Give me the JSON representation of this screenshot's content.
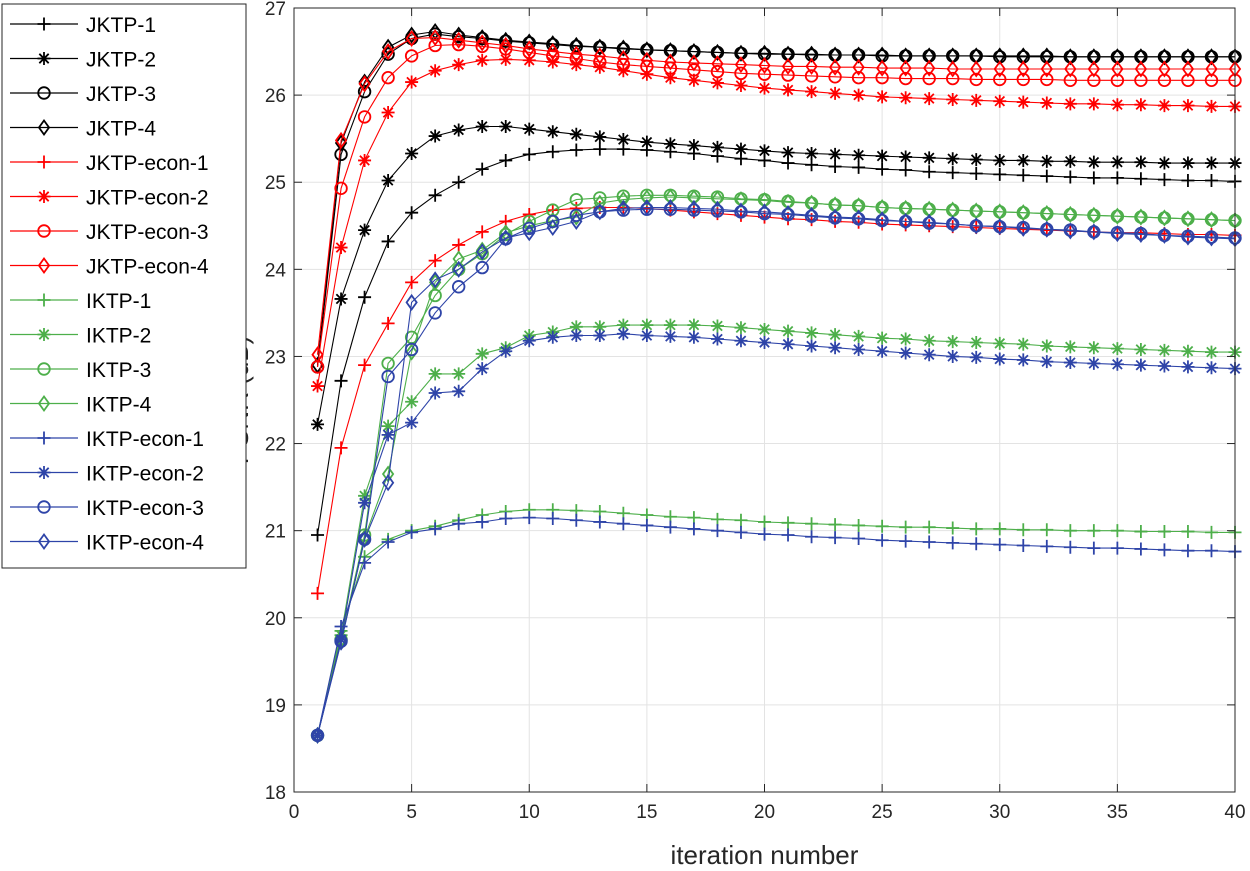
{
  "chart_data": {
    "type": "line",
    "xlabel": "iteration number",
    "ylabel": "PSNR (dB)",
    "xlim": [
      0,
      40
    ],
    "ylim": [
      18,
      27
    ],
    "xticks": [
      0,
      5,
      10,
      15,
      20,
      25,
      30,
      35,
      40
    ],
    "yticks": [
      18,
      19,
      20,
      21,
      22,
      23,
      24,
      25,
      26,
      27
    ],
    "grid": true,
    "legend_position": "outside-left",
    "x": [
      1,
      2,
      3,
      4,
      5,
      6,
      7,
      8,
      9,
      10,
      11,
      12,
      13,
      14,
      15,
      16,
      17,
      18,
      19,
      20,
      21,
      22,
      23,
      24,
      25,
      26,
      27,
      28,
      29,
      30,
      31,
      32,
      33,
      34,
      35,
      36,
      37,
      38,
      39,
      40
    ],
    "series": [
      {
        "name": "JKTP-1",
        "color": "#000000",
        "marker": "plus",
        "values": [
          20.95,
          22.72,
          23.68,
          24.32,
          24.65,
          24.85,
          25.0,
          25.15,
          25.25,
          25.32,
          25.35,
          25.37,
          25.38,
          25.38,
          25.37,
          25.35,
          25.33,
          25.3,
          25.27,
          25.25,
          25.22,
          25.2,
          25.18,
          25.17,
          25.15,
          25.14,
          25.12,
          25.11,
          25.1,
          25.09,
          25.08,
          25.07,
          25.06,
          25.05,
          25.05,
          25.04,
          25.03,
          25.02,
          25.02,
          25.01
        ]
      },
      {
        "name": "JKTP-2",
        "color": "#000000",
        "marker": "asterisk",
        "values": [
          22.22,
          23.66,
          24.45,
          25.02,
          25.33,
          25.53,
          25.6,
          25.64,
          25.64,
          25.61,
          25.58,
          25.55,
          25.52,
          25.49,
          25.46,
          25.44,
          25.42,
          25.4,
          25.38,
          25.36,
          25.34,
          25.33,
          25.32,
          25.31,
          25.3,
          25.29,
          25.28,
          25.27,
          25.26,
          25.25,
          25.25,
          25.24,
          25.24,
          25.23,
          25.23,
          25.23,
          25.22,
          25.22,
          25.22,
          25.22
        ]
      },
      {
        "name": "JKTP-3",
        "color": "#000000",
        "marker": "circle",
        "values": [
          22.88,
          25.32,
          26.04,
          26.47,
          26.65,
          26.7,
          26.67,
          26.65,
          26.62,
          26.6,
          26.58,
          26.56,
          26.55,
          26.53,
          26.52,
          26.51,
          26.5,
          26.49,
          26.48,
          26.47,
          26.47,
          26.46,
          26.46,
          26.46,
          26.45,
          26.45,
          26.45,
          26.45,
          26.45,
          26.44,
          26.44,
          26.44,
          26.44,
          26.44,
          26.44,
          26.44,
          26.44,
          26.44,
          26.44,
          26.44
        ]
      },
      {
        "name": "JKTP-4",
        "color": "#000000",
        "marker": "diamond",
        "values": [
          22.9,
          25.45,
          26.15,
          26.55,
          26.69,
          26.73,
          26.69,
          26.66,
          26.63,
          26.61,
          26.59,
          26.57,
          26.55,
          26.54,
          26.52,
          26.51,
          26.5,
          26.49,
          26.48,
          26.48,
          26.47,
          26.47,
          26.46,
          26.46,
          26.46,
          26.45,
          26.45,
          26.45,
          26.45,
          26.45,
          26.45,
          26.45,
          26.44,
          26.44,
          26.44,
          26.44,
          26.44,
          26.44,
          26.44,
          26.44
        ]
      },
      {
        "name": "JKTP-econ-1",
        "color": "#ff0000",
        "marker": "plus",
        "values": [
          20.28,
          21.95,
          22.9,
          23.38,
          23.85,
          24.1,
          24.28,
          24.43,
          24.55,
          24.63,
          24.68,
          24.7,
          24.71,
          24.71,
          24.7,
          24.68,
          24.66,
          24.64,
          24.62,
          24.6,
          24.58,
          24.57,
          24.55,
          24.54,
          24.52,
          24.51,
          24.5,
          24.49,
          24.48,
          24.47,
          24.46,
          24.45,
          24.44,
          24.43,
          24.42,
          24.42,
          24.41,
          24.4,
          24.4,
          24.39
        ]
      },
      {
        "name": "JKTP-econ-2",
        "color": "#ff0000",
        "marker": "asterisk",
        "values": [
          22.66,
          24.25,
          25.25,
          25.8,
          26.15,
          26.28,
          26.35,
          26.4,
          26.41,
          26.4,
          26.38,
          26.35,
          26.32,
          26.28,
          26.24,
          26.2,
          26.17,
          26.14,
          26.11,
          26.08,
          26.06,
          26.04,
          26.02,
          26.0,
          25.98,
          25.97,
          25.96,
          25.95,
          25.94,
          25.93,
          25.92,
          25.91,
          25.9,
          25.9,
          25.89,
          25.89,
          25.88,
          25.88,
          25.87,
          25.87
        ]
      },
      {
        "name": "JKTP-econ-3",
        "color": "#ff0000",
        "marker": "circle",
        "values": [
          22.88,
          24.93,
          25.75,
          26.2,
          26.45,
          26.57,
          26.58,
          26.56,
          26.53,
          26.49,
          26.45,
          26.42,
          26.38,
          26.35,
          26.33,
          26.31,
          26.29,
          26.27,
          26.25,
          26.24,
          26.23,
          26.22,
          26.21,
          26.2,
          26.2,
          26.19,
          26.19,
          26.19,
          26.18,
          26.18,
          26.18,
          26.18,
          26.17,
          26.17,
          26.17,
          26.17,
          26.17,
          26.17,
          26.17,
          26.17
        ]
      },
      {
        "name": "JKTP-econ-4",
        "color": "#ff0000",
        "marker": "diamond",
        "values": [
          23.02,
          25.48,
          26.13,
          26.5,
          26.65,
          26.66,
          26.63,
          26.6,
          26.57,
          26.53,
          26.5,
          26.47,
          26.45,
          26.42,
          26.4,
          26.38,
          26.37,
          26.36,
          26.35,
          26.34,
          26.33,
          26.33,
          26.32,
          26.32,
          26.31,
          26.31,
          26.31,
          26.3,
          26.3,
          26.3,
          26.3,
          26.3,
          26.3,
          26.3,
          26.3,
          26.3,
          26.3,
          26.3,
          26.3,
          26.3
        ]
      },
      {
        "name": "IKTP-1",
        "color": "#4daf4a",
        "marker": "plus",
        "values": [
          18.65,
          19.85,
          20.7,
          20.9,
          21.0,
          21.05,
          21.12,
          21.18,
          21.22,
          21.24,
          21.24,
          21.23,
          21.22,
          21.2,
          21.18,
          21.16,
          21.15,
          21.13,
          21.12,
          21.1,
          21.09,
          21.08,
          21.07,
          21.06,
          21.05,
          21.04,
          21.04,
          21.03,
          21.02,
          21.02,
          21.01,
          21.01,
          21.0,
          21.0,
          21.0,
          20.99,
          20.99,
          20.99,
          20.98,
          20.98
        ]
      },
      {
        "name": "IKTP-2",
        "color": "#4daf4a",
        "marker": "asterisk",
        "values": [
          18.65,
          19.8,
          21.4,
          22.2,
          22.48,
          22.8,
          22.8,
          23.03,
          23.1,
          23.24,
          23.28,
          23.34,
          23.34,
          23.36,
          23.36,
          23.36,
          23.36,
          23.35,
          23.33,
          23.31,
          23.29,
          23.27,
          23.25,
          23.23,
          23.21,
          23.2,
          23.18,
          23.17,
          23.16,
          23.15,
          23.14,
          23.12,
          23.11,
          23.1,
          23.09,
          23.08,
          23.07,
          23.06,
          23.05,
          23.05
        ]
      },
      {
        "name": "IKTP-3",
        "color": "#4daf4a",
        "marker": "circle",
        "values": [
          18.65,
          19.75,
          20.95,
          22.92,
          23.22,
          23.7,
          24.0,
          24.18,
          24.4,
          24.55,
          24.68,
          24.8,
          24.82,
          24.84,
          24.85,
          24.85,
          24.84,
          24.83,
          24.81,
          24.8,
          24.78,
          24.76,
          24.74,
          24.73,
          24.71,
          24.7,
          24.69,
          24.68,
          24.67,
          24.66,
          24.65,
          24.64,
          24.63,
          24.62,
          24.61,
          24.6,
          24.59,
          24.58,
          24.57,
          24.56
        ]
      },
      {
        "name": "IKTP-4",
        "color": "#4daf4a",
        "marker": "diamond",
        "values": [
          18.65,
          19.75,
          20.92,
          21.65,
          23.05,
          23.85,
          24.12,
          24.22,
          24.42,
          24.5,
          24.56,
          24.6,
          24.76,
          24.8,
          24.82,
          24.83,
          24.82,
          24.81,
          24.8,
          24.79,
          24.77,
          24.76,
          24.74,
          24.73,
          24.71,
          24.7,
          24.69,
          24.68,
          24.67,
          24.66,
          24.65,
          24.64,
          24.63,
          24.62,
          24.61,
          24.6,
          24.59,
          24.58,
          24.57,
          24.56
        ]
      },
      {
        "name": "IKTP-econ-1",
        "color": "#2e44a8",
        "marker": "plus",
        "values": [
          18.65,
          19.9,
          20.63,
          20.87,
          20.98,
          21.02,
          21.08,
          21.1,
          21.14,
          21.15,
          21.14,
          21.12,
          21.1,
          21.08,
          21.06,
          21.04,
          21.02,
          21.0,
          20.98,
          20.96,
          20.95,
          20.93,
          20.92,
          20.91,
          20.89,
          20.88,
          20.87,
          20.86,
          20.85,
          20.84,
          20.83,
          20.82,
          20.81,
          20.8,
          20.8,
          20.79,
          20.78,
          20.77,
          20.77,
          20.76
        ]
      },
      {
        "name": "IKTP-econ-2",
        "color": "#2e44a8",
        "marker": "asterisk",
        "values": [
          18.65,
          19.75,
          21.32,
          22.1,
          22.24,
          22.58,
          22.6,
          22.86,
          23.06,
          23.18,
          23.22,
          23.24,
          23.24,
          23.26,
          23.24,
          23.23,
          23.22,
          23.2,
          23.18,
          23.16,
          23.14,
          23.12,
          23.1,
          23.08,
          23.06,
          23.04,
          23.02,
          23.0,
          22.99,
          22.97,
          22.96,
          22.94,
          22.93,
          22.92,
          22.91,
          22.9,
          22.89,
          22.88,
          22.87,
          22.86
        ]
      },
      {
        "name": "IKTP-econ-3",
        "color": "#2e44a8",
        "marker": "circle",
        "values": [
          18.65,
          19.73,
          20.9,
          22.77,
          23.08,
          23.5,
          23.8,
          24.02,
          24.35,
          24.47,
          24.55,
          24.62,
          24.66,
          24.68,
          24.69,
          24.69,
          24.68,
          24.67,
          24.66,
          24.64,
          24.63,
          24.61,
          24.59,
          24.58,
          24.56,
          24.55,
          24.53,
          24.52,
          24.5,
          24.49,
          24.48,
          24.46,
          24.45,
          24.43,
          24.42,
          24.41,
          24.39,
          24.38,
          24.37,
          24.36
        ]
      },
      {
        "name": "IKTP-econ-4",
        "color": "#2e44a8",
        "marker": "diamond",
        "values": [
          18.65,
          19.72,
          20.9,
          21.55,
          23.62,
          23.88,
          24.0,
          24.2,
          24.36,
          24.42,
          24.48,
          24.55,
          24.66,
          24.7,
          24.71,
          24.71,
          24.7,
          24.69,
          24.67,
          24.66,
          24.64,
          24.62,
          24.6,
          24.59,
          24.57,
          24.55,
          24.54,
          24.52,
          24.5,
          24.49,
          24.47,
          24.46,
          24.44,
          24.43,
          24.41,
          24.4,
          24.39,
          24.37,
          24.36,
          24.35
        ]
      }
    ]
  }
}
